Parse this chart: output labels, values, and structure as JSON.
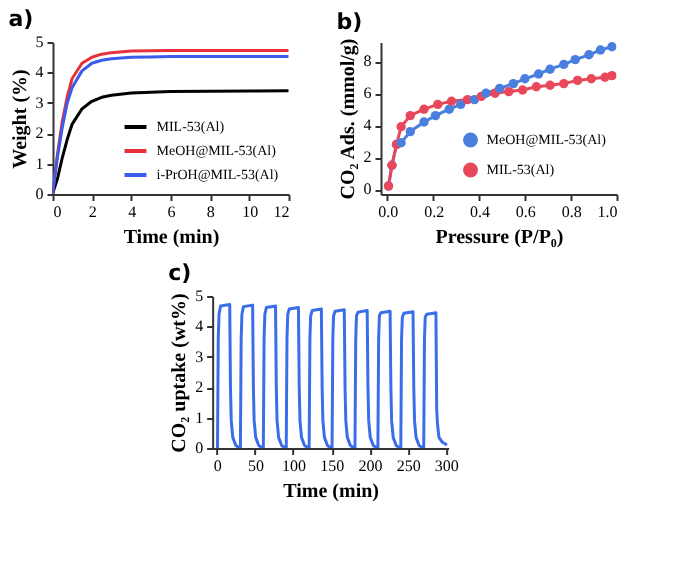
{
  "chart_data": [
    {
      "type": "line",
      "title": "a)",
      "xlabel": "Time (min)",
      "ylabel": "Weight (%)",
      "xlim": [
        0,
        12
      ],
      "ylim": [
        0,
        5
      ],
      "xticks": [
        0,
        2,
        4,
        6,
        8,
        10,
        12
      ],
      "yticks": [
        0,
        1,
        2,
        3,
        4,
        5
      ],
      "legend": "bottom right",
      "line_style": "solid",
      "series": [
        {
          "name": "MIL-53(Al)",
          "color": "#000000",
          "x": [
            0,
            0.25,
            0.5,
            0.75,
            1,
            1.5,
            2,
            2.5,
            3,
            4,
            5,
            6,
            8,
            10,
            12
          ],
          "values": [
            0,
            0.5,
            1.2,
            1.8,
            2.3,
            2.8,
            3.05,
            3.18,
            3.25,
            3.32,
            3.35,
            3.37,
            3.38,
            3.39,
            3.4
          ]
        },
        {
          "name": "MeOH@MIL-53(Al)",
          "color": "#e8303a",
          "x": [
            0,
            0.25,
            0.5,
            0.75,
            1,
            1.5,
            2,
            2.5,
            3,
            4,
            5,
            6,
            8,
            10,
            12
          ],
          "values": [
            0,
            1.3,
            2.4,
            3.2,
            3.8,
            4.3,
            4.5,
            4.6,
            4.65,
            4.7,
            4.71,
            4.72,
            4.72,
            4.72,
            4.72
          ]
        },
        {
          "name": "i-PrOH@MIL-53(Al)",
          "color": "#3a5ce8",
          "x": [
            0,
            0.25,
            0.5,
            0.75,
            1,
            1.5,
            2,
            2.5,
            3,
            4,
            5,
            6,
            8,
            10,
            12
          ],
          "values": [
            0,
            1.2,
            2.2,
            3.0,
            3.5,
            4.05,
            4.3,
            4.4,
            4.45,
            4.5,
            4.51,
            4.52,
            4.52,
            4.52,
            4.52
          ]
        }
      ]
    },
    {
      "type": "line",
      "title": "b)",
      "xlabel": "Pressure (P/P₀)",
      "ylabel": "CO₂ Ads. (mmol/g)",
      "xlim": [
        -0.03,
        1.0
      ],
      "ylim": [
        -0.3,
        9.2
      ],
      "xticks": [
        {
          "value": 0,
          "label": "0.0"
        },
        {
          "value": 0.2,
          "label": "0.2"
        },
        {
          "value": 0.4,
          "label": "0.4"
        },
        {
          "value": 0.6,
          "label": "0.6"
        },
        {
          "value": 0.8,
          "label": "0.8"
        },
        {
          "value": 1,
          "label": "1.0"
        }
      ],
      "yticks": [
        0,
        2,
        4,
        6,
        8
      ],
      "legend": "bottom right",
      "marker": "circle",
      "line_style": "solid",
      "series": [
        {
          "name": "MeOH@MIL-53(Al)",
          "color": "#4a7fe0",
          "x": [
            0.005,
            0.02,
            0.04,
            0.06,
            0.1,
            0.16,
            0.21,
            0.27,
            0.32,
            0.38,
            0.43,
            0.49,
            0.55,
            0.6,
            0.66,
            0.71,
            0.77,
            0.82,
            0.88,
            0.93,
            0.98
          ],
          "values": [
            0.2,
            1.5,
            2.8,
            2.9,
            3.6,
            4.2,
            4.6,
            5.0,
            5.3,
            5.6,
            6.0,
            6.3,
            6.6,
            6.9,
            7.2,
            7.5,
            7.8,
            8.1,
            8.4,
            8.7,
            8.9
          ]
        },
        {
          "name": "MIL-53(Al)",
          "color": "#e8485a",
          "x": [
            0.005,
            0.02,
            0.04,
            0.06,
            0.1,
            0.16,
            0.22,
            0.28,
            0.35,
            0.41,
            0.47,
            0.53,
            0.59,
            0.65,
            0.71,
            0.77,
            0.83,
            0.89,
            0.95,
            0.98
          ],
          "values": [
            0.2,
            1.5,
            2.8,
            3.9,
            4.6,
            5.0,
            5.3,
            5.5,
            5.6,
            5.8,
            6.0,
            6.1,
            6.2,
            6.4,
            6.5,
            6.6,
            6.8,
            6.9,
            7.0,
            7.1
          ]
        }
      ]
    },
    {
      "type": "line",
      "title": "c)",
      "xlabel": "Time (min)",
      "ylabel": "CO₂ uptake (wt%)",
      "xlim": [
        -6,
        303
      ],
      "ylim": [
        0,
        5
      ],
      "xticks": [
        0,
        50,
        100,
        150,
        200,
        250,
        300
      ],
      "yticks": [
        0,
        1,
        2,
        3,
        4,
        5
      ],
      "line_style": "solid",
      "series": [
        {
          "color": "#3a6ee8",
          "x": [
            1,
            2,
            3,
            5,
            17,
            18,
            19,
            21,
            25,
            30,
            31,
            32,
            33,
            35,
            47,
            48,
            49,
            51,
            55,
            60,
            61,
            62,
            63,
            65,
            77,
            78,
            79,
            81,
            85,
            90,
            91,
            92,
            93,
            95,
            107,
            108,
            109,
            111,
            115,
            120,
            121,
            122,
            123,
            125,
            137,
            138,
            139,
            141,
            145,
            150,
            151,
            152,
            153,
            155,
            167,
            168,
            169,
            171,
            175,
            180,
            181,
            182,
            183,
            185,
            197,
            198,
            199,
            201,
            205,
            210,
            211,
            212,
            213,
            215,
            227,
            228,
            229,
            231,
            235,
            240,
            241,
            242,
            243,
            245,
            257,
            258,
            259,
            261,
            265,
            270,
            271,
            272,
            273,
            275,
            287,
            288,
            289,
            291,
            295,
            300
          ],
          "values": [
            0,
            3.6,
            4.4,
            4.67,
            4.72,
            2.0,
            0.9,
            0.35,
            0.08,
            0,
            0,
            3.6,
            4.4,
            4.65,
            4.7,
            2.0,
            0.9,
            0.35,
            0.08,
            0,
            0,
            3.6,
            4.4,
            4.62,
            4.67,
            2.0,
            0.9,
            0.35,
            0.08,
            0,
            0,
            3.6,
            4.4,
            4.57,
            4.62,
            2.0,
            0.9,
            0.35,
            0.08,
            0,
            0,
            3.6,
            4.35,
            4.52,
            4.57,
            2.0,
            0.9,
            0.35,
            0.08,
            0,
            0,
            3.6,
            4.35,
            4.5,
            4.55,
            2.0,
            0.9,
            0.35,
            0.08,
            0,
            0,
            3.6,
            4.35,
            4.47,
            4.52,
            2.0,
            0.9,
            0.35,
            0.08,
            0,
            0,
            3.6,
            4.35,
            4.45,
            4.5,
            2.0,
            0.9,
            0.35,
            0.08,
            0,
            0,
            3.6,
            4.3,
            4.43,
            4.48,
            2.0,
            0.9,
            0.35,
            0.08,
            0,
            0,
            3.6,
            4.3,
            4.4,
            4.45,
            1.3,
            0.8,
            0.35,
            0.2,
            0.12
          ]
        }
      ]
    }
  ]
}
